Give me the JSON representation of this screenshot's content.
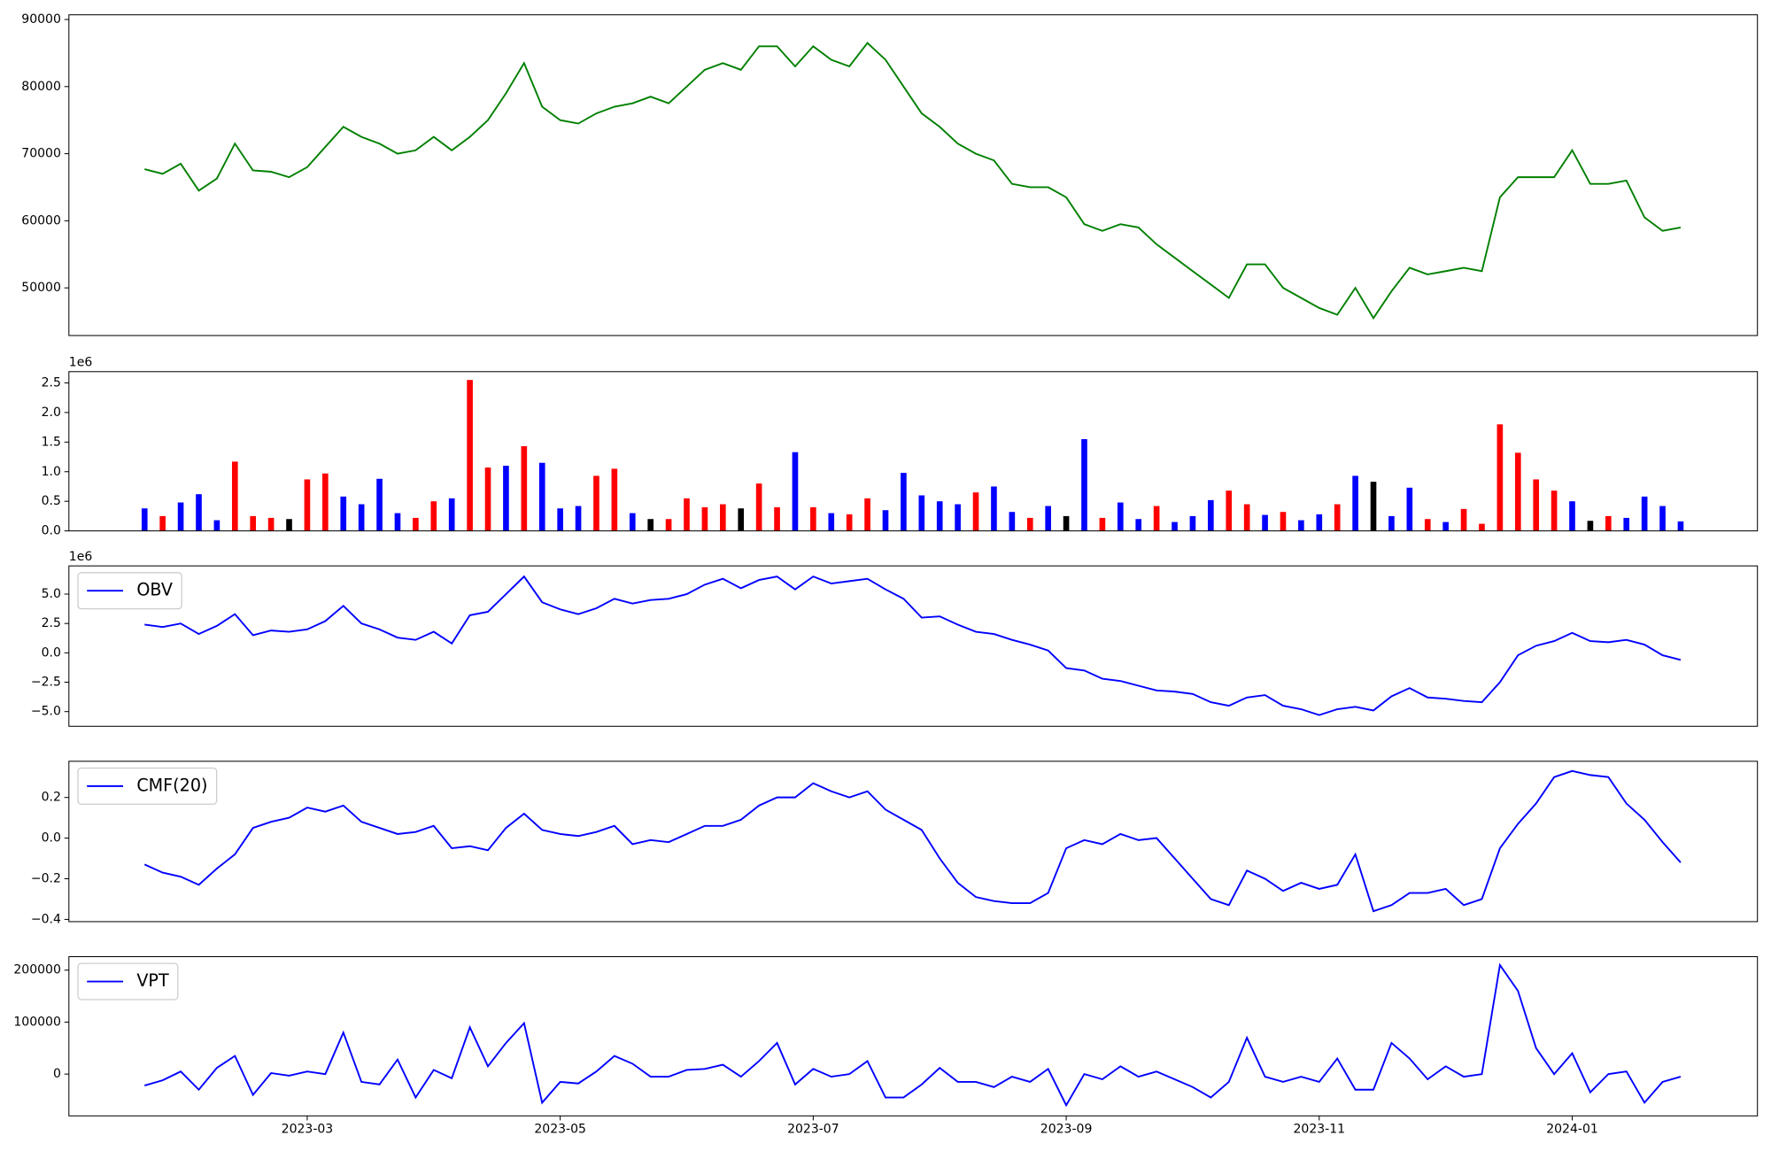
{
  "chart_data": [
    {
      "type": "line",
      "series": [
        {
          "color": "green",
          "values": [
            67700,
            67000,
            68500,
            64500,
            66300,
            71500,
            67500,
            67300,
            66500,
            68000,
            71000,
            74000,
            72500,
            71500,
            70000,
            70500,
            72500,
            70500,
            72500,
            75000,
            79000,
            83500,
            77000,
            75000,
            74500,
            76000,
            77000,
            77500,
            78500,
            77500,
            80000,
            82500,
            83500,
            82500,
            86000,
            86000,
            83000,
            86000,
            84000,
            83000,
            86500,
            84000,
            80000,
            76000,
            74000,
            71500,
            70000,
            69000,
            65500,
            65000,
            65000,
            63500,
            59500,
            58500,
            59500,
            59000,
            56500,
            54500,
            52500,
            50500,
            48500,
            53500,
            53500,
            50000,
            48500,
            47000,
            46000,
            50000,
            45500,
            49500,
            53000,
            52000,
            52500,
            53000,
            52500,
            63500,
            66500,
            66500,
            66500,
            70500,
            65500,
            65500,
            66000,
            60500,
            58500,
            59000
          ]
        }
      ],
      "ylim": [
        42900,
        90700
      ],
      "yticks": [
        50000,
        60000,
        70000,
        80000,
        90000
      ]
    },
    {
      "type": "bar",
      "offset_label": "1e6",
      "values": [
        0.38,
        0.25,
        0.48,
        0.62,
        0.18,
        1.17,
        0.25,
        0.22,
        0.2,
        0.87,
        0.97,
        0.58,
        0.45,
        0.88,
        0.3,
        0.22,
        0.5,
        0.55,
        2.55,
        1.07,
        1.1,
        1.43,
        1.15,
        0.38,
        0.42,
        0.93,
        1.05,
        0.3,
        0.2,
        0.2,
        0.55,
        0.4,
        0.45,
        0.38,
        0.8,
        0.4,
        1.33,
        0.4,
        0.3,
        0.28,
        0.55,
        0.35,
        0.98,
        0.6,
        0.5,
        0.45,
        0.65,
        0.75,
        0.32,
        0.22,
        0.42,
        0.25,
        1.55,
        0.22,
        0.48,
        0.2,
        0.42,
        0.15,
        0.25,
        0.52,
        0.68,
        0.45,
        0.27,
        0.32,
        0.18,
        0.28,
        0.45,
        0.93,
        0.83,
        0.25,
        0.73,
        0.2,
        0.15,
        0.37,
        0.12,
        1.8,
        1.32,
        0.87,
        0.68,
        0.5,
        0.17,
        0.25,
        0.22,
        0.58,
        0.42,
        0.16
      ],
      "colors": [
        "blue",
        "red",
        "blue",
        "blue",
        "blue",
        "red",
        "red",
        "red",
        "black",
        "red",
        "red",
        "blue",
        "blue",
        "blue",
        "blue",
        "red",
        "red",
        "blue",
        "red",
        "red",
        "blue",
        "red",
        "blue",
        "blue",
        "blue",
        "red",
        "red",
        "blue",
        "black",
        "red",
        "red",
        "red",
        "red",
        "black",
        "red",
        "red",
        "blue",
        "red",
        "blue",
        "red",
        "red",
        "blue",
        "blue",
        "blue",
        "blue",
        "blue",
        "red",
        "blue",
        "blue",
        "red",
        "blue",
        "black",
        "blue",
        "red",
        "blue",
        "blue",
        "red",
        "blue",
        "blue",
        "blue",
        "red",
        "red",
        "blue",
        "red",
        "blue",
        "blue",
        "red",
        "blue",
        "black",
        "blue",
        "blue",
        "red",
        "blue",
        "red",
        "red",
        "red",
        "red",
        "red",
        "red",
        "blue",
        "black",
        "red",
        "blue",
        "blue",
        "blue",
        "blue"
      ],
      "ylim": [
        0,
        2.69
      ],
      "yticks": [
        {
          "value": 0,
          "label": "0.0"
        },
        0.5,
        {
          "value": 1,
          "label": "1.0"
        },
        1.5,
        {
          "value": 2,
          "label": "2.0"
        },
        2.5
      ]
    },
    {
      "type": "line",
      "offset_label": "1e6",
      "legend": "upper left",
      "series": [
        {
          "name": "OBV",
          "color": "blue",
          "values": [
            2.4,
            2.2,
            2.5,
            1.6,
            2.3,
            3.3,
            1.5,
            1.9,
            1.8,
            2.0,
            2.7,
            4.0,
            2.5,
            2.0,
            1.3,
            1.1,
            1.8,
            0.8,
            3.2,
            3.5,
            5.0,
            6.5,
            4.3,
            3.7,
            3.3,
            3.8,
            4.6,
            4.2,
            4.5,
            4.6,
            5.0,
            5.8,
            6.3,
            5.5,
            6.2,
            6.5,
            5.4,
            6.5,
            5.9,
            6.1,
            6.3,
            5.4,
            4.6,
            3.0,
            3.1,
            2.4,
            1.8,
            1.6,
            1.1,
            0.7,
            0.2,
            -1.3,
            -1.5,
            -2.2,
            -2.4,
            -2.8,
            -3.2,
            -3.3,
            -3.5,
            -4.2,
            -4.5,
            -3.8,
            -3.6,
            -4.5,
            -4.8,
            -5.3,
            -4.8,
            -4.6,
            -4.9,
            -3.7,
            -3.0,
            -3.8,
            -3.9,
            -4.1,
            -4.2,
            -2.5,
            -0.2,
            0.6,
            1.0,
            1.7,
            1.0,
            0.9,
            1.1,
            0.7,
            -0.2,
            -0.6
          ]
        }
      ],
      "ylim": [
        -6.25,
        7.4
      ],
      "yticks": [
        {
          "value": -5,
          "label": "−5.0"
        },
        {
          "value": -2.5,
          "label": "−2.5"
        },
        {
          "value": 0,
          "label": "0.0"
        },
        2.5,
        {
          "value": 5,
          "label": "5.0"
        }
      ]
    },
    {
      "type": "line",
      "legend": "upper left",
      "series": [
        {
          "name": "CMF(20)",
          "color": "blue",
          "values": [
            -0.13,
            -0.17,
            -0.19,
            -0.23,
            -0.15,
            -0.08,
            0.05,
            0.08,
            0.1,
            0.15,
            0.13,
            0.16,
            0.08,
            0.05,
            0.02,
            0.03,
            0.06,
            -0.05,
            -0.04,
            -0.06,
            0.05,
            0.12,
            0.04,
            0.02,
            0.01,
            0.03,
            0.06,
            -0.03,
            -0.01,
            -0.02,
            0.02,
            0.06,
            0.06,
            0.09,
            0.16,
            0.2,
            0.2,
            0.27,
            0.23,
            0.2,
            0.23,
            0.14,
            0.09,
            0.04,
            -0.1,
            -0.22,
            -0.29,
            -0.31,
            -0.32,
            -0.32,
            -0.27,
            -0.05,
            -0.01,
            -0.03,
            0.02,
            -0.01,
            0.0,
            -0.1,
            -0.2,
            -0.3,
            -0.33,
            -0.16,
            -0.2,
            -0.26,
            -0.22,
            -0.25,
            -0.23,
            -0.08,
            -0.36,
            -0.33,
            -0.27,
            -0.27,
            -0.25,
            -0.33,
            -0.3,
            -0.05,
            0.07,
            0.17,
            0.3,
            0.33,
            0.31,
            0.3,
            0.17,
            0.09,
            -0.02,
            -0.12
          ]
        }
      ],
      "ylim": [
        -0.411,
        0.378
      ],
      "yticks": [
        {
          "value": -0.4,
          "label": "−0.4"
        },
        {
          "value": -0.2,
          "label": "−0.2"
        },
        {
          "value": 0,
          "label": "0.0"
        },
        0.2
      ]
    },
    {
      "type": "line",
      "legend": "upper left",
      "categories": [
        null,
        null,
        null,
        null,
        null,
        null,
        null,
        null,
        null,
        "2023-03",
        null,
        null,
        null,
        null,
        null,
        null,
        null,
        null,
        null,
        null,
        null,
        null,
        null,
        "2023-05",
        null,
        null,
        null,
        null,
        null,
        null,
        null,
        null,
        null,
        null,
        null,
        null,
        null,
        "2023-07",
        null,
        null,
        null,
        null,
        null,
        null,
        null,
        null,
        null,
        null,
        null,
        null,
        null,
        "2023-09",
        null,
        null,
        null,
        null,
        null,
        null,
        null,
        null,
        null,
        null,
        null,
        null,
        null,
        "2023-11",
        null,
        null,
        null,
        null,
        null,
        null,
        null,
        null,
        null,
        null,
        null,
        null,
        null,
        "2024-01",
        null,
        null,
        null,
        null,
        null,
        null
      ],
      "series": [
        {
          "name": "VPT",
          "color": "blue",
          "values": [
            -22000,
            -12000,
            5000,
            -30000,
            12000,
            35000,
            -40000,
            2000,
            -3000,
            5000,
            0,
            80000,
            -15000,
            -20000,
            28000,
            -45000,
            8000,
            -8000,
            90000,
            15000,
            60000,
            98000,
            -55000,
            -15000,
            -18000,
            5000,
            35000,
            20000,
            -5000,
            -5000,
            8000,
            10000,
            18000,
            -5000,
            25000,
            60000,
            -20000,
            10000,
            -5000,
            0,
            25000,
            -45000,
            -45000,
            -20000,
            12000,
            -15000,
            -15000,
            -25000,
            -5000,
            -15000,
            10000,
            -60000,
            0,
            -10000,
            15000,
            -5000,
            5000,
            -10000,
            -25000,
            -45000,
            -15000,
            70000,
            -5000,
            -15000,
            -5000,
            -15000,
            30000,
            -30000,
            -30000,
            60000,
            30000,
            -10000,
            15000,
            -5000,
            0,
            210000,
            160000,
            50000,
            0,
            40000,
            -35000,
            0,
            5000,
            -55000,
            -15000,
            -5000
          ]
        }
      ],
      "ylim": [
        -80400,
        226000
      ],
      "yticks": [
        0,
        100000,
        200000
      ]
    }
  ]
}
